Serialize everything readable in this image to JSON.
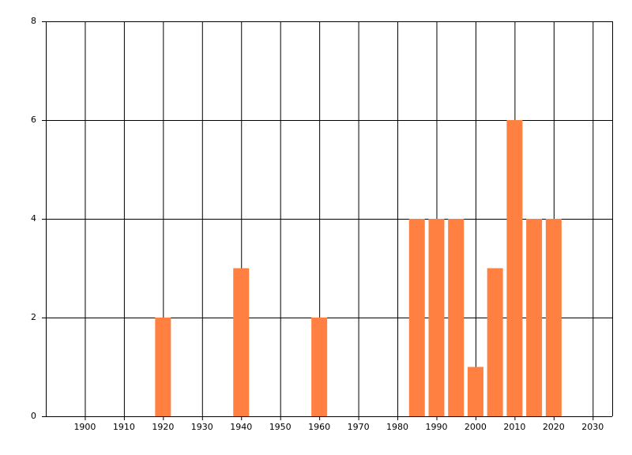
{
  "chart_data": {
    "type": "bar",
    "x": [
      1920,
      1940,
      1960,
      1985,
      1990,
      1995,
      2000,
      2005,
      2010,
      2015,
      2020
    ],
    "values": [
      2,
      3,
      2,
      4,
      4,
      4,
      1,
      3,
      6,
      4,
      4
    ],
    "color": "#ff8040",
    "xlim": [
      1890,
      2035
    ],
    "xticks": [
      1900,
      1910,
      1920,
      1930,
      1940,
      1950,
      1960,
      1970,
      1980,
      1990,
      2000,
      2010,
      2020,
      2030
    ],
    "ylim": [
      0,
      8
    ],
    "yticks": [
      0,
      2,
      4,
      6,
      8
    ],
    "grid": true
  }
}
